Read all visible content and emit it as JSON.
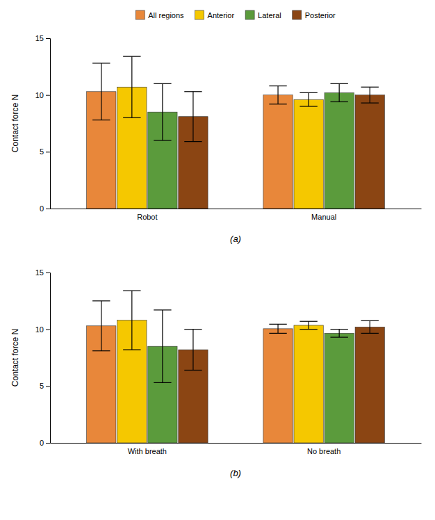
{
  "chart_data": [
    {
      "type": "bar",
      "categories": [
        "Robot",
        "Manual"
      ],
      "series": [
        {
          "name": "All regions",
          "color": "#E8873A",
          "values": [
            10.3,
            10.0
          ],
          "errors": [
            2.5,
            0.8
          ]
        },
        {
          "name": "Anterior",
          "color": "#F5C800",
          "values": [
            10.7,
            9.6
          ],
          "errors": [
            2.7,
            0.6
          ]
        },
        {
          "name": "Lateral",
          "color": "#5B9B3C",
          "values": [
            8.5,
            10.2
          ],
          "errors": [
            2.5,
            0.8
          ]
        },
        {
          "name": "Posterior",
          "color": "#8B4513",
          "values": [
            8.1,
            10.0
          ],
          "errors": [
            2.2,
            0.7
          ]
        }
      ],
      "ylabel": "Contact force N",
      "ylim": [
        0,
        15
      ],
      "yticks": [
        0,
        5,
        10,
        15
      ],
      "annotations": [
        "(a)"
      ],
      "legend": "upper center"
    },
    {
      "type": "bar",
      "categories": [
        "With breath",
        "No breath"
      ],
      "series": [
        {
          "name": "All regions",
          "color": "#E8873A",
          "values": [
            10.3,
            10.05
          ],
          "errors": [
            2.2,
            0.4
          ]
        },
        {
          "name": "Anterior",
          "color": "#F5C800",
          "values": [
            10.8,
            10.35
          ],
          "errors": [
            2.6,
            0.35
          ]
        },
        {
          "name": "Lateral",
          "color": "#5B9B3C",
          "values": [
            8.5,
            9.65
          ],
          "errors": [
            3.2,
            0.35
          ]
        },
        {
          "name": "Posterior",
          "color": "#8B4513",
          "values": [
            8.2,
            10.2
          ],
          "errors": [
            1.8,
            0.55
          ]
        }
      ],
      "ylabel": "Contact force N",
      "ylim": [
        0,
        15
      ],
      "yticks": [
        0,
        5,
        10,
        15
      ],
      "annotations": [
        "(b)"
      ]
    }
  ]
}
